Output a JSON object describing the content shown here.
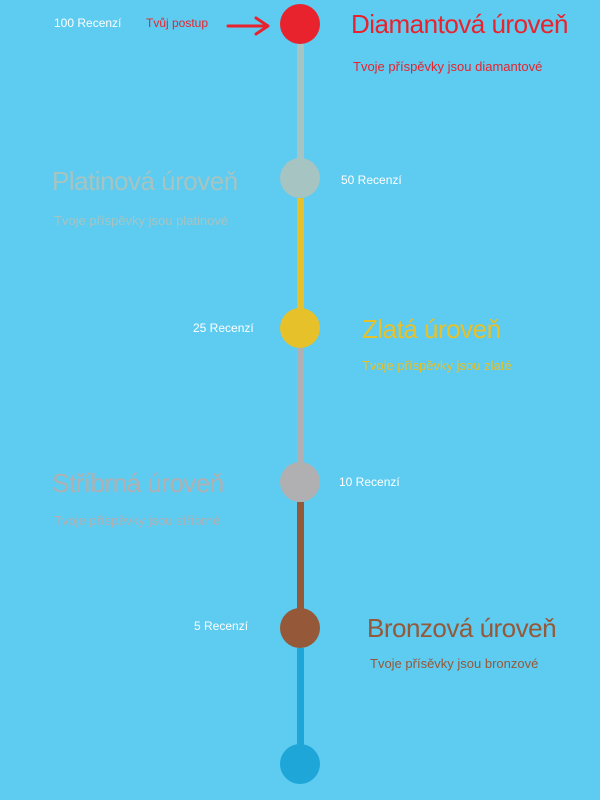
{
  "colors": {
    "background": "#5ecbf0",
    "diamond": "#e8232d",
    "platinum": "#a6c4c2",
    "gold": "#e6c12a",
    "silver": "#b0b0b2",
    "bronze": "#955838",
    "base": "#1ea6d8"
  },
  "progress": {
    "label": "Tvůj postup",
    "icon": "arrow-right-icon"
  },
  "levels": [
    {
      "key": "diamond",
      "title": "Diamantová úroveň",
      "subtitle": "Tvoje příspěvky jsou diamantové",
      "count": "100 Recenzí"
    },
    {
      "key": "platinum",
      "title": "Platinová úroveň",
      "subtitle": "Tvoje příspěvky jsou platinové",
      "count": "50 Recenzí"
    },
    {
      "key": "gold",
      "title": "Zlatá úroveň",
      "subtitle": "Tvoje příspěvky jsou zlaté",
      "count": "25 Recenzí"
    },
    {
      "key": "silver",
      "title": "Stříbrná úroveň",
      "subtitle": "Tvoje příspěvky jsou stříbrné",
      "count": "10 Recenzí"
    },
    {
      "key": "bronze",
      "title": "Bronzová úroveň",
      "subtitle": "Tvoje přísěvky  jsou bronzové",
      "count": "5 Recenzí"
    }
  ]
}
